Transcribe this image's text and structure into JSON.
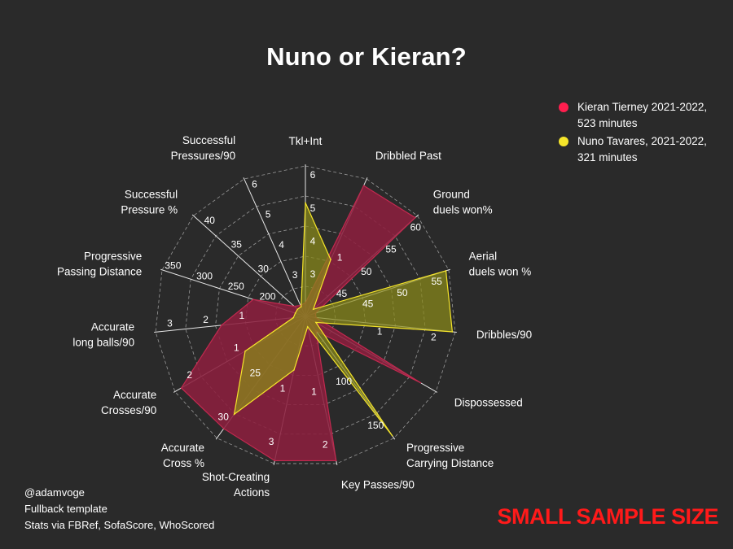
{
  "title": "Nuno or Kieran?",
  "legend": [
    {
      "label": "Kieran Tierney 2021-2022, 523 minutes",
      "color": "#ff1e4e"
    },
    {
      "label": "Nuno Tavares, 2021-2022, 321 minutes",
      "color": "#f5e52a"
    }
  ],
  "credits": {
    "line1": "@adamvoge",
    "line2": "Fullback template",
    "line3": "Stats via FBRef, SofaScore, WhoScored"
  },
  "warning": "SMALL SAMPLE SIZE",
  "chart_data": {
    "type": "radar",
    "title": "Nuno or Kieran?",
    "grid": true,
    "legend_position": "top-right",
    "axes": [
      {
        "name": "Tkl+Int",
        "ticks": [
          "3",
          "4",
          "5",
          "6"
        ]
      },
      {
        "name": "Dribbled Past",
        "ticks": [
          "1"
        ]
      },
      {
        "name": "Ground duels won%",
        "ticks": [
          "45",
          "50",
          "55",
          "60"
        ]
      },
      {
        "name": "Aerial duels won %",
        "ticks": [
          "45",
          "50",
          "55"
        ]
      },
      {
        "name": "Dribbles/90",
        "ticks": [
          "1",
          "2"
        ]
      },
      {
        "name": "Dispossessed",
        "ticks": []
      },
      {
        "name": "Progressive Carrying Distance",
        "ticks": [
          "100",
          "150"
        ]
      },
      {
        "name": "Key Passes/90",
        "ticks": [
          "1",
          "2"
        ]
      },
      {
        "name": "Shot-Creating Actions",
        "ticks": [
          "1",
          "3"
        ]
      },
      {
        "name": "Accurate Cross %",
        "ticks": [
          "25",
          "30"
        ]
      },
      {
        "name": "Accurate Crosses/90",
        "ticks": [
          "1",
          "2"
        ]
      },
      {
        "name": "Accurate long balls/90",
        "ticks": [
          "1",
          "2",
          "3"
        ]
      },
      {
        "name": "Progressive Passing Distance",
        "ticks": [
          "200",
          "250",
          "300",
          "350"
        ]
      },
      {
        "name": "Successful Pressure %",
        "ticks": [
          "30",
          "35",
          "40"
        ]
      },
      {
        "name": "Successful Pressures/90",
        "ticks": [
          "3",
          "4",
          "5",
          "6"
        ]
      }
    ],
    "series": [
      {
        "name": "Kieran Tierney 2021-2022, 523 minutes",
        "color": "#ff1e4e",
        "values_normalized": [
          0.07,
          0.95,
          0.98,
          0.05,
          0.05,
          0.88,
          0.1,
          0.98,
          0.98,
          0.92,
          0.95,
          0.55,
          0.35,
          0.08,
          0.06
        ]
      },
      {
        "name": "Nuno Tavares, 2021-2022, 321 minutes",
        "color": "#f5e52a",
        "values_normalized": [
          0.75,
          0.4,
          0.05,
          0.98,
          0.98,
          0.06,
          0.98,
          0.05,
          0.35,
          0.8,
          0.45,
          0.06,
          0.05,
          0.05,
          0.05
        ]
      }
    ]
  }
}
